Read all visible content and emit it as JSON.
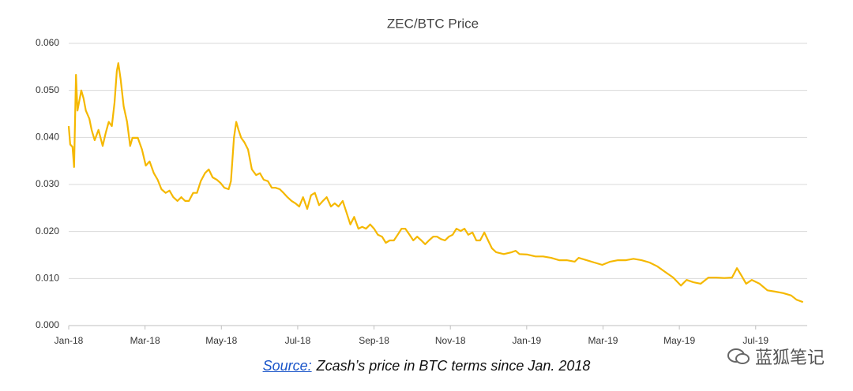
{
  "chart_data": {
    "type": "line",
    "title": "ZEC/BTC Price",
    "color": "#f5b800",
    "x": [
      0,
      0.04,
      0.1,
      0.14,
      0.19,
      0.23,
      0.27,
      0.33,
      0.39,
      0.45,
      0.54,
      0.6,
      0.68,
      0.78,
      0.89,
      0.97,
      1.05,
      1.13,
      1.2,
      1.26,
      1.3,
      1.36,
      1.44,
      1.53,
      1.61,
      1.67,
      1.81,
      1.92,
      2.02,
      2.12,
      2.23,
      2.33,
      2.43,
      2.54,
      2.64,
      2.74,
      2.85,
      2.95,
      3.05,
      3.15,
      3.26,
      3.36,
      3.46,
      3.57,
      3.67,
      3.77,
      3.88,
      3.98,
      4.08,
      4.19,
      4.25,
      4.33,
      4.39,
      4.45,
      4.52,
      4.6,
      4.7,
      4.8,
      4.91,
      5.01,
      5.11,
      5.22,
      5.32,
      5.42,
      5.53,
      5.63,
      5.73,
      5.84,
      5.94,
      6.04,
      6.14,
      6.25,
      6.35,
      6.45,
      6.56,
      6.66,
      6.76,
      6.87,
      6.97,
      7.07,
      7.18,
      7.28,
      7.38,
      7.48,
      7.59,
      7.69,
      7.79,
      7.9,
      8.0,
      8.1,
      8.21,
      8.31,
      8.41,
      8.52,
      8.62,
      8.72,
      8.82,
      8.93,
      9.03,
      9.13,
      9.24,
      9.34,
      9.44,
      9.55,
      9.65,
      9.75,
      9.86,
      9.96,
      10.06,
      10.16,
      10.27,
      10.37,
      10.47,
      10.58,
      10.68,
      10.78,
      10.89,
      10.99,
      11.09,
      11.2,
      11.4,
      11.61,
      11.71,
      11.81,
      12.02,
      12.23,
      12.43,
      12.64,
      12.85,
      13.05,
      13.26,
      13.36,
      13.57,
      13.77,
      13.98,
      14.19,
      14.39,
      14.6,
      14.8,
      15.01,
      15.22,
      15.42,
      15.63,
      15.84,
      16.04,
      16.19,
      16.37,
      16.56,
      16.76,
      16.97,
      17.18,
      17.38,
      17.51,
      17.63,
      17.75,
      17.9,
      18.1,
      18.31,
      18.52,
      18.72,
      18.93,
      19.07,
      19.24
    ],
    "values": [
      0.0424,
      0.0385,
      0.038,
      0.0337,
      0.0533,
      0.0457,
      0.0474,
      0.05,
      0.0483,
      0.0457,
      0.044,
      0.0416,
      0.0394,
      0.0416,
      0.0382,
      0.041,
      0.0433,
      0.0424,
      0.0474,
      0.0541,
      0.0558,
      0.0524,
      0.0466,
      0.0433,
      0.0382,
      0.0399,
      0.0399,
      0.0374,
      0.034,
      0.0349,
      0.0324,
      0.031,
      0.029,
      0.0282,
      0.0287,
      0.0273,
      0.0265,
      0.0273,
      0.0265,
      0.0265,
      0.0282,
      0.0282,
      0.0307,
      0.0324,
      0.0332,
      0.0315,
      0.031,
      0.0303,
      0.0293,
      0.029,
      0.0307,
      0.0399,
      0.0433,
      0.0416,
      0.0399,
      0.039,
      0.0374,
      0.0332,
      0.032,
      0.0324,
      0.031,
      0.0307,
      0.0293,
      0.0293,
      0.029,
      0.0282,
      0.0273,
      0.0265,
      0.026,
      0.0253,
      0.0273,
      0.0248,
      0.0277,
      0.0282,
      0.0256,
      0.0265,
      0.0273,
      0.0253,
      0.026,
      0.0253,
      0.0265,
      0.024,
      0.0215,
      0.0231,
      0.0206,
      0.021,
      0.0206,
      0.0215,
      0.0206,
      0.0193,
      0.0189,
      0.0176,
      0.0181,
      0.0181,
      0.0193,
      0.0206,
      0.0206,
      0.0193,
      0.0181,
      0.0189,
      0.0181,
      0.0173,
      0.0181,
      0.0189,
      0.0189,
      0.0184,
      0.0181,
      0.0189,
      0.0193,
      0.0206,
      0.0201,
      0.0206,
      0.0193,
      0.0198,
      0.0181,
      0.0181,
      0.0198,
      0.0181,
      0.0164,
      0.0156,
      0.0152,
      0.0156,
      0.0159,
      0.0152,
      0.0151,
      0.0147,
      0.0147,
      0.0144,
      0.0139,
      0.0139,
      0.0136,
      0.0144,
      0.0139,
      0.0134,
      0.0129,
      0.0136,
      0.0139,
      0.0139,
      0.0142,
      0.0139,
      0.0134,
      0.0126,
      0.0114,
      0.0102,
      0.0085,
      0.0097,
      0.0092,
      0.0089,
      0.0102,
      0.0102,
      0.0101,
      0.0102,
      0.0122,
      0.0106,
      0.0089,
      0.0097,
      0.0089,
      0.0075,
      0.0072,
      0.0069,
      0.0064,
      0.0055,
      0.005
    ],
    "xlim": [
      0,
      19.35
    ],
    "xticks": [
      {
        "value": 0,
        "label": "Jan-18"
      },
      {
        "value": 2,
        "label": "Mar-18"
      },
      {
        "value": 4,
        "label": "May-18"
      },
      {
        "value": 6,
        "label": "Jul-18"
      },
      {
        "value": 8,
        "label": "Sep-18"
      },
      {
        "value": 10,
        "label": "Nov-18"
      },
      {
        "value": 12,
        "label": "Jan-19"
      },
      {
        "value": 14,
        "label": "Mar-19"
      },
      {
        "value": 16,
        "label": "May-19"
      },
      {
        "value": 18,
        "label": "Jul-19"
      }
    ],
    "ylim": [
      0,
      0.06
    ],
    "yticks": [
      {
        "value": 0,
        "label": "0.000"
      },
      {
        "value": 0.01,
        "label": "0.010"
      },
      {
        "value": 0.02,
        "label": "0.020"
      },
      {
        "value": 0.03,
        "label": "0.030"
      },
      {
        "value": 0.04,
        "label": "0.040"
      },
      {
        "value": 0.05,
        "label": "0.050"
      },
      {
        "value": 0.06,
        "label": "0.060"
      }
    ],
    "grid": true
  },
  "caption": {
    "link": "Source:",
    "text": "Zcash’s price in BTC terms since Jan. 2018"
  },
  "watermark": "蓝狐笔记"
}
